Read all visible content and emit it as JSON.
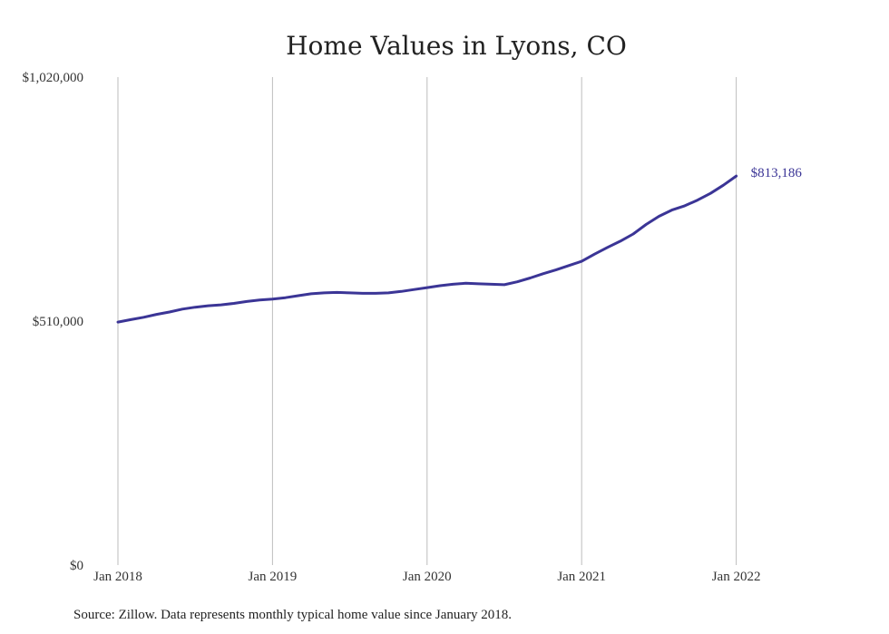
{
  "chart_data": {
    "type": "line",
    "title": "Home Values in Lyons, CO",
    "xlabel": "",
    "ylabel": "",
    "x_start": "2018-01",
    "x_ticks": [
      "Jan 2018",
      "Jan 2019",
      "Jan 2020",
      "Jan 2021",
      "Jan 2022"
    ],
    "y_ticks": [
      "$0",
      "$510,000",
      "$1,020,000"
    ],
    "ylim": [
      0,
      1020000
    ],
    "grid": "vertical",
    "line_color": "#3b3596",
    "end_label": "$813,186",
    "series": [
      {
        "values": [
          508000,
          513000,
          518000,
          524000,
          529000,
          535000,
          539000,
          542000,
          544000,
          547000,
          551000,
          554000,
          556000,
          559000,
          563000,
          567000,
          569000,
          570000,
          569000,
          568000,
          568000,
          569000,
          572000,
          576000,
          580000,
          584000,
          587000,
          589000,
          588000,
          587000,
          586000,
          592000,
          600000,
          609000,
          617000,
          626000,
          635000,
          650000,
          664000,
          677000,
          692000,
          712000,
          729000,
          742000,
          751000,
          763000,
          777000,
          794000,
          813186
        ]
      }
    ]
  },
  "footer": {
    "source": "Source: Zillow. Data represents monthly typical home value since January 2018."
  }
}
